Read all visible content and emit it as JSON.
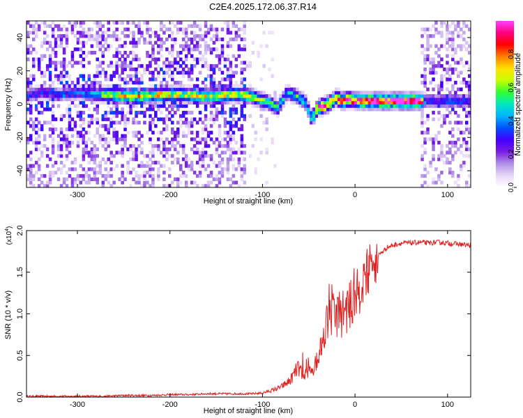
{
  "figure_title": "C2E4.2025.172.06.37.R14",
  "chart_data": [
    {
      "type": "heatmap",
      "name": "spectrogram",
      "xlabel": "Height of straight line (km)",
      "ylabel": "Frequency (Hz)",
      "xlim": [
        -355,
        125
      ],
      "ylim": [
        -50,
        50
      ],
      "xticks": [
        -300,
        -200,
        -100,
        0,
        100
      ],
      "yticks": [
        -40,
        -20,
        0,
        20,
        40
      ],
      "colorbar": {
        "label": "Normalized spectral amplitude",
        "range": [
          0,
          1
        ],
        "ticks": [
          "0.0",
          "0.2",
          "0.4",
          "0.6",
          "0.8"
        ],
        "tick_values": [
          0,
          0.2,
          0.4,
          0.6,
          0.8
        ]
      },
      "colormap": [
        "#ffffff",
        "#e8d8f8",
        "#b090e8",
        "#7a1ee0",
        "#4400ff",
        "#0050ff",
        "#00b4ff",
        "#00e8c0",
        "#30ff30",
        "#c8ff00",
        "#ffe000",
        "#ff8000",
        "#ff0000",
        "#ff0080",
        "#ff40ff"
      ],
      "ridge": [
        [
          -355,
          4,
          0.3
        ],
        [
          -340,
          6,
          0.3
        ],
        [
          -320,
          5,
          0.3
        ],
        [
          -300,
          6,
          0.35
        ],
        [
          -280,
          5,
          0.45
        ],
        [
          -270,
          5,
          0.6
        ],
        [
          -250,
          4,
          0.7
        ],
        [
          -230,
          4,
          0.65
        ],
        [
          -210,
          5,
          0.7
        ],
        [
          -190,
          5,
          0.65
        ],
        [
          -170,
          4,
          0.65
        ],
        [
          -150,
          4,
          0.7
        ],
        [
          -130,
          5,
          0.65
        ],
        [
          -115,
          4,
          0.6
        ],
        [
          -105,
          2,
          0.6
        ],
        [
          -95,
          0,
          0.55
        ],
        [
          -85,
          -3,
          0.5
        ],
        [
          -75,
          6,
          0.45
        ],
        [
          -65,
          4,
          0.5
        ],
        [
          -55,
          0,
          0.5
        ],
        [
          -48,
          -10,
          0.5
        ],
        [
          -42,
          -3,
          0.85
        ],
        [
          -35,
          -2,
          0.85
        ],
        [
          -28,
          0,
          0.85
        ],
        [
          -22,
          3,
          0.8
        ],
        [
          -15,
          1,
          0.85
        ],
        [
          -8,
          2,
          0.85
        ],
        [
          0,
          1,
          0.9
        ],
        [
          10,
          1,
          1.0
        ],
        [
          40,
          1,
          1.0
        ],
        [
          70,
          1,
          1.0
        ],
        [
          75,
          1,
          0.3
        ],
        [
          90,
          1,
          0.3
        ],
        [
          110,
          1,
          0.35
        ],
        [
          125,
          1,
          0.3
        ]
      ]
    },
    {
      "type": "line",
      "name": "snr",
      "xlabel": "Height of straight line (km)",
      "ylabel": "SNR (10 * v/v)",
      "y_multiplier": "(x10",
      "y_multiplier_exp": "4",
      "y_multiplier_close": ")",
      "xlim": [
        -355,
        125
      ],
      "ylim": [
        0,
        2.0
      ],
      "xticks": [
        -300,
        -200,
        -100,
        0,
        100
      ],
      "yticks": [
        "0.0",
        "0.5",
        "1.0",
        "1.5",
        "2.0"
      ],
      "ytick_values": [
        0,
        0.5,
        1.0,
        1.5,
        2.0
      ],
      "color": "#e02020",
      "series": [
        {
          "x": [
            -355,
            -330,
            -300,
            -270,
            -250,
            -220,
            -200,
            -180,
            -160,
            -140,
            -120,
            -110,
            -100,
            -90,
            -80,
            -70,
            -62,
            -55,
            -50,
            -45,
            -40,
            -35,
            -32,
            -28,
            -25,
            -20,
            -15,
            -10,
            -5,
            0,
            5,
            10,
            15,
            20,
            25,
            30,
            35,
            40,
            50,
            60,
            70,
            80,
            90,
            100,
            110,
            125
          ],
          "y": [
            0.01,
            0.01,
            0.01,
            0.01,
            0.02,
            0.02,
            0.03,
            0.03,
            0.04,
            0.04,
            0.04,
            0.04,
            0.05,
            0.08,
            0.12,
            0.2,
            0.35,
            0.25,
            0.3,
            0.35,
            0.5,
            0.65,
            0.9,
            0.9,
            1.0,
            1.0,
            1.0,
            1.05,
            1.1,
            1.2,
            1.3,
            1.4,
            1.55,
            1.6,
            1.7,
            1.75,
            1.8,
            1.82,
            1.85,
            1.85,
            1.86,
            1.85,
            1.86,
            1.85,
            1.84,
            1.82
          ]
        }
      ]
    }
  ]
}
